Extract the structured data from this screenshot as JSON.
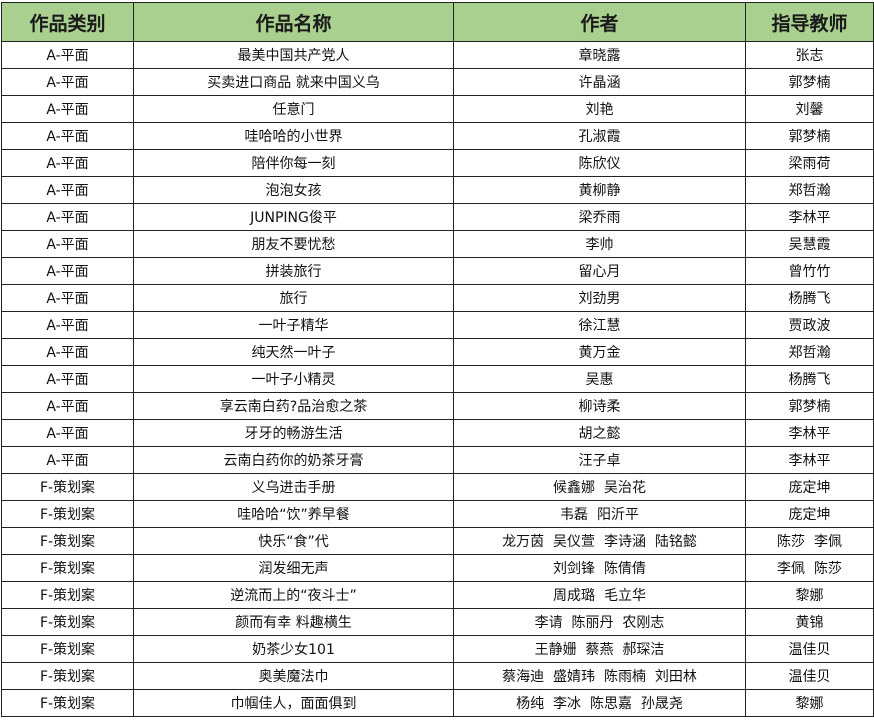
{
  "table": {
    "header_color": "#a9d08e",
    "headers": [
      "作品类别",
      "作品名称",
      "作者",
      "指导教师"
    ],
    "rows": [
      [
        "A-平面",
        "最美中国共产党人",
        "章晓露",
        "张志"
      ],
      [
        "A-平面",
        "买卖进口商品 就来中国义乌",
        "许晶涵",
        "郭梦楠"
      ],
      [
        "A-平面",
        "任意门",
        "刘艳",
        "刘馨"
      ],
      [
        "A-平面",
        "哇哈哈的小世界",
        "孔淑霞",
        "郭梦楠"
      ],
      [
        "A-平面",
        "陪伴你每一刻",
        "陈欣仪",
        "梁雨荷"
      ],
      [
        "A-平面",
        "泡泡女孩",
        "黄柳静",
        "郑哲瀚"
      ],
      [
        "A-平面",
        "JUNPING俊平",
        "梁乔雨",
        "李林平"
      ],
      [
        "A-平面",
        "朋友不要忧愁",
        "李帅",
        "吴慧霞"
      ],
      [
        "A-平面",
        "拼装旅行",
        "留心月",
        "曾竹竹"
      ],
      [
        "A-平面",
        "旅行",
        "刘劲男",
        "杨腾飞"
      ],
      [
        "A-平面",
        "一叶子精华",
        "徐江慧",
        "贾政波"
      ],
      [
        "A-平面",
        "纯天然一叶子",
        "黄万金",
        "郑哲瀚"
      ],
      [
        "A-平面",
        "一叶子小精灵",
        "吴惠",
        "杨腾飞"
      ],
      [
        "A-平面",
        "享云南白药?品治愈之茶",
        "柳诗柔",
        "郭梦楠"
      ],
      [
        "A-平面",
        "牙牙的畅游生活",
        "胡之懿",
        "李林平"
      ],
      [
        "A-平面",
        "云南白药你的奶茶牙膏",
        "汪子卓",
        "李林平"
      ],
      [
        "F-策划案",
        "义乌进击手册",
        "候鑫娜  吴治花",
        "庞定坤"
      ],
      [
        "F-策划案",
        "哇哈哈“饮”养早餐",
        "韦磊  阳沂平",
        "庞定坤"
      ],
      [
        "F-策划案",
        "快乐“食”代",
        "龙万茵  吴仪萱  李诗涵  陆铭懿",
        "陈莎  李佩"
      ],
      [
        "F-策划案",
        "润发细无声",
        "刘剑锋  陈倩倩",
        "李佩  陈莎"
      ],
      [
        "F-策划案",
        "逆流而上的“夜斗士”",
        "周成璐  毛立华",
        "黎娜"
      ],
      [
        "F-策划案",
        "颜而有幸 料趣横生",
        "李请  陈丽丹  农刚志",
        "黄锦"
      ],
      [
        "F-策划案",
        "奶茶少女101",
        "王静姗  蔡燕  郝琛洁",
        "温佳贝"
      ],
      [
        "F-策划案",
        "奥美魔法巾",
        "蔡海迪  盛婧玮  陈雨楠  刘田林",
        "温佳贝"
      ],
      [
        "F-策划案",
        "巾帼佳人，面面俱到",
        "杨纯  李冰  陈思嘉  孙晟尧",
        "黎娜"
      ]
    ]
  }
}
